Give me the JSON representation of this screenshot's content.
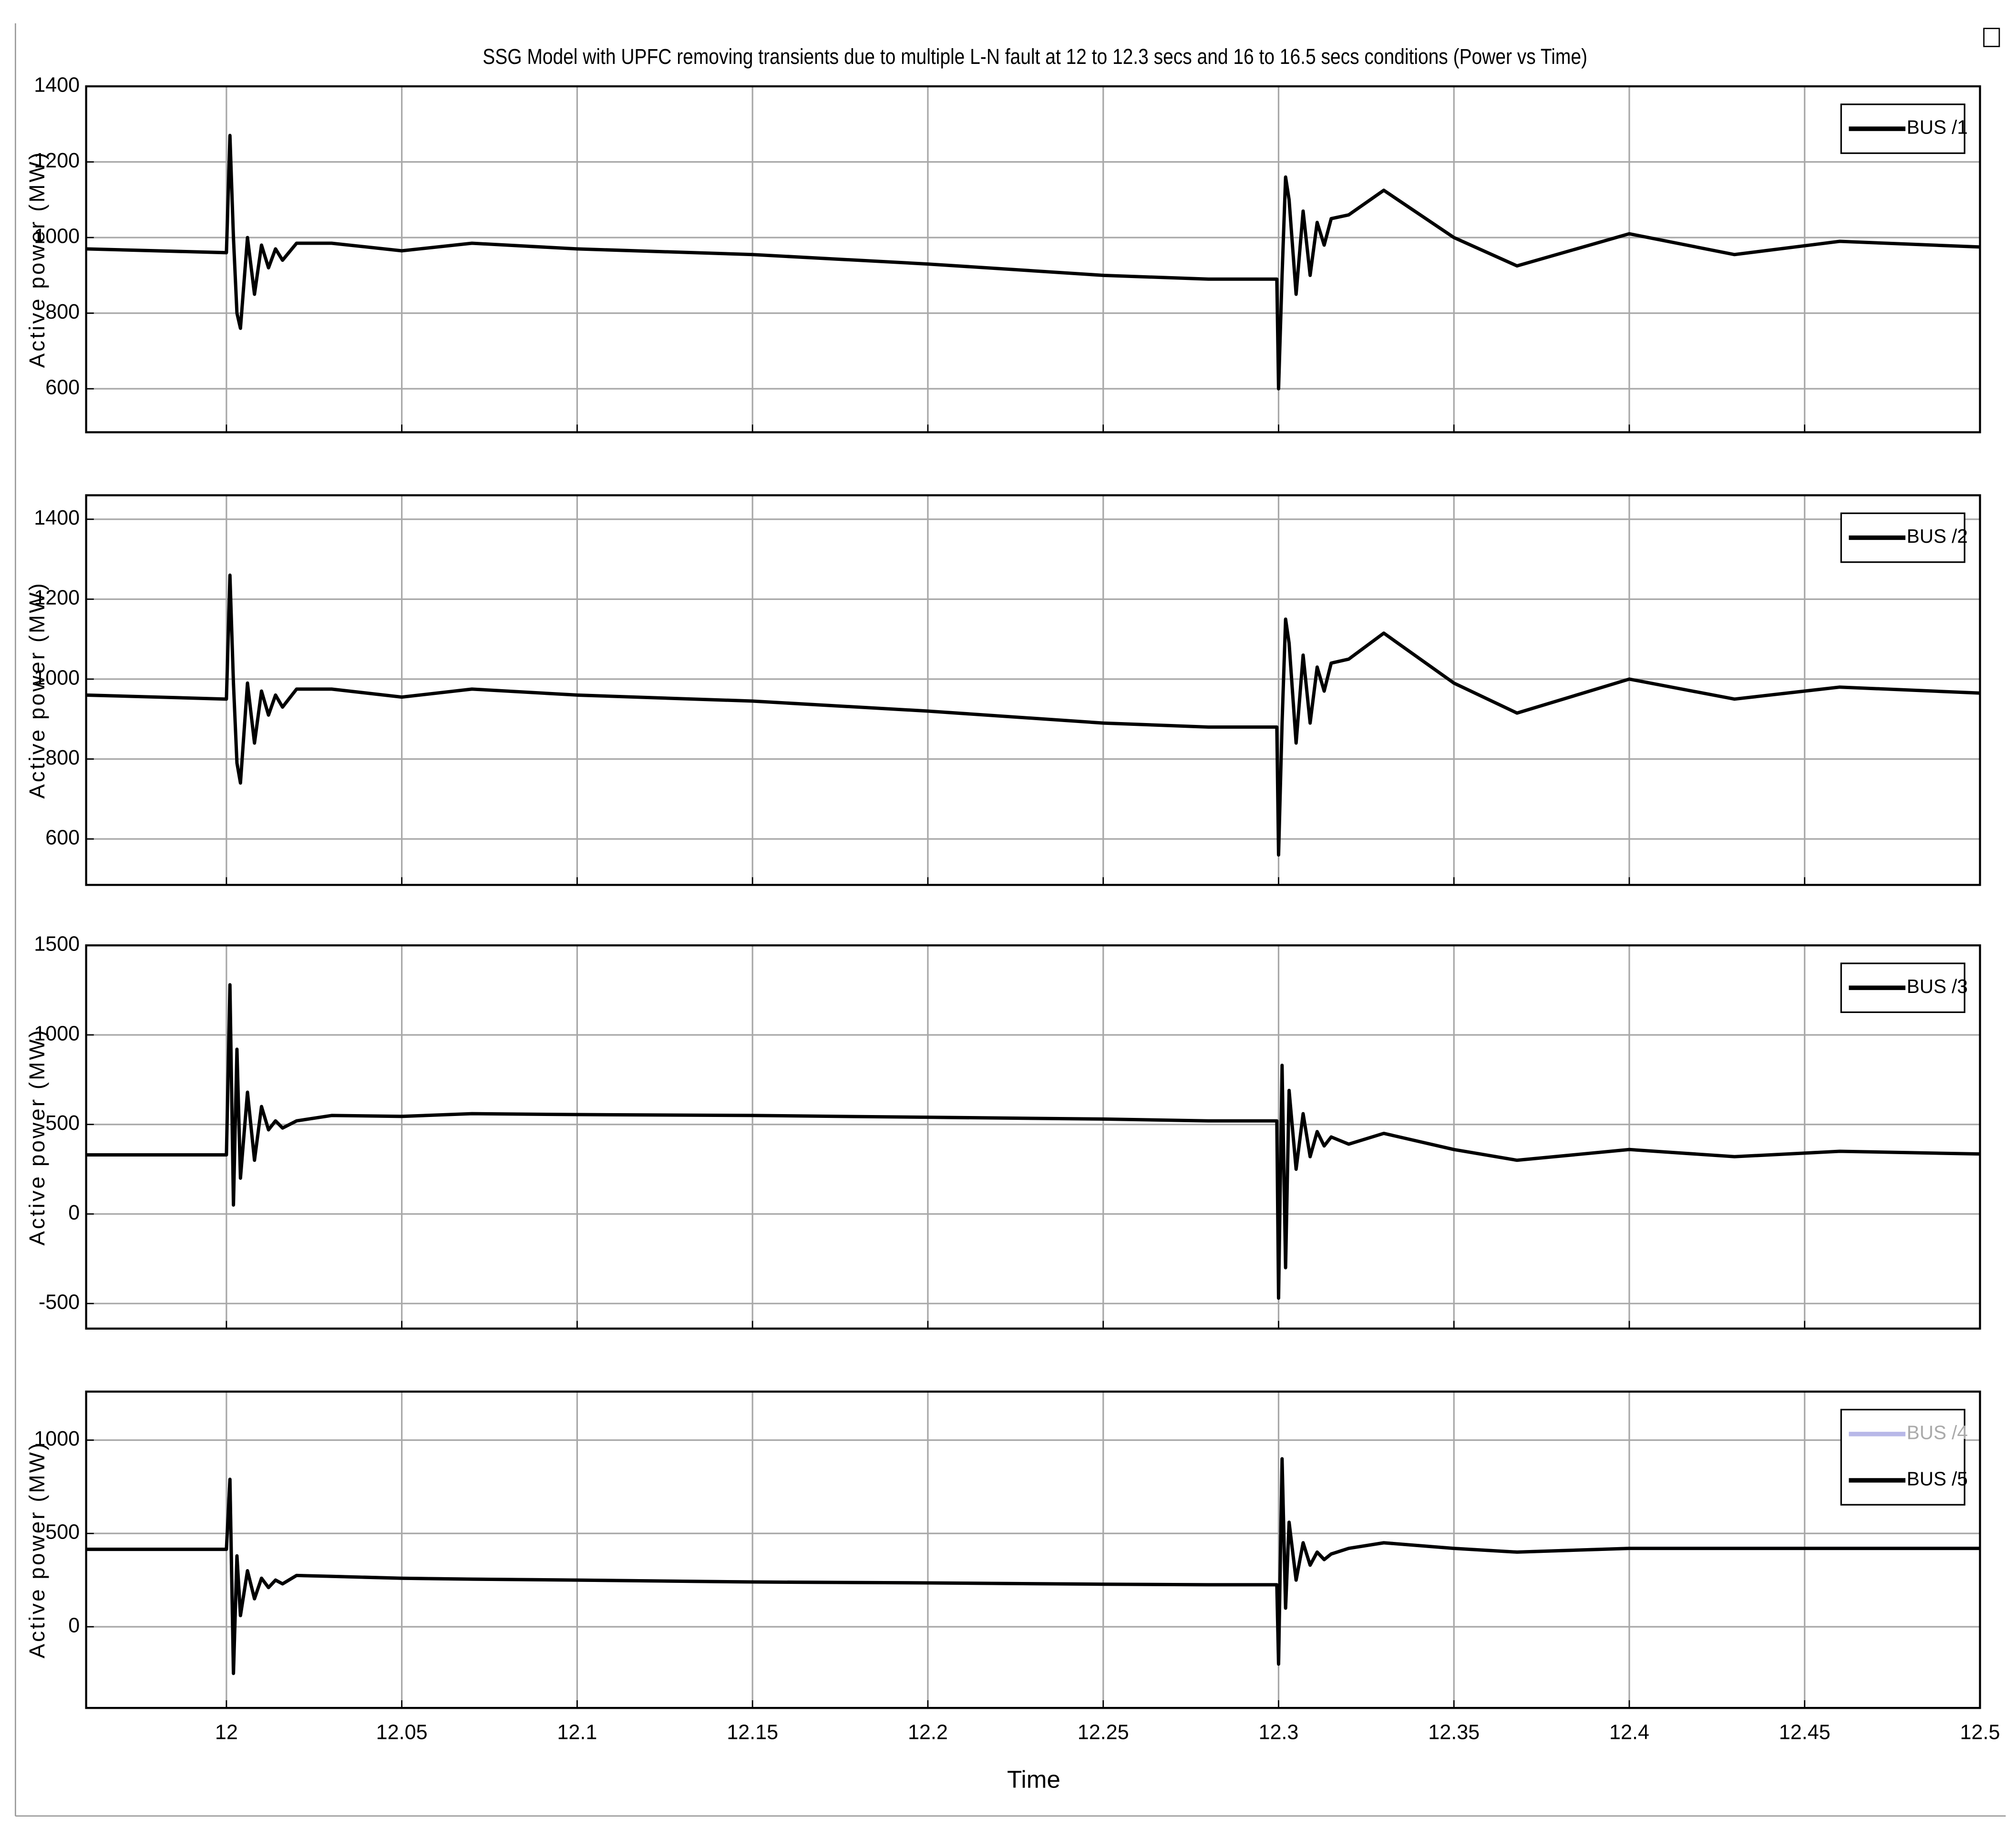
{
  "chart_data": [
    {
      "type": "line",
      "title": "SSG Model with UPFC removing transients due to multiple L-N fault at 12 to 12.3 secs and 16 to 16.5 secs conditions (Power vs Time)",
      "ylabel": "Active power (MW)",
      "grid": true,
      "legend": "upper right",
      "xlim": [
        11.96,
        12.5
      ],
      "xticks": [
        12,
        12.05,
        12.1,
        12.15,
        12.2,
        12.25,
        12.3,
        12.35,
        12.4,
        12.45,
        12.5
      ],
      "ylim": [
        485,
        1400
      ],
      "yticks": [
        600,
        800,
        1000,
        1200,
        1400
      ],
      "x": [
        11.96,
        12.0,
        12.001,
        12.002,
        12.003,
        12.004,
        12.006,
        12.008,
        12.01,
        12.012,
        12.014,
        12.016,
        12.02,
        12.03,
        12.05,
        12.07,
        12.1,
        12.15,
        12.2,
        12.25,
        12.28,
        12.2995,
        12.3,
        12.301,
        12.302,
        12.303,
        12.305,
        12.307,
        12.309,
        12.311,
        12.313,
        12.315,
        12.32,
        12.33,
        12.35,
        12.368,
        12.4,
        12.43,
        12.46,
        12.5
      ],
      "series": [
        {
          "name": "BUS /1",
          "color": "#000000",
          "values": [
            970,
            960,
            1270,
            1000,
            800,
            760,
            1000,
            850,
            980,
            920,
            970,
            940,
            985,
            985,
            965,
            985,
            970,
            955,
            930,
            900,
            890,
            890,
            600,
            900,
            1160,
            1100,
            850,
            1070,
            900,
            1040,
            980,
            1050,
            1060,
            1125,
            1000,
            925,
            1010,
            955,
            990,
            975
          ]
        }
      ]
    },
    {
      "type": "line",
      "ylabel": "Active power (MW)",
      "grid": true,
      "legend": "upper right",
      "xlim": [
        11.96,
        12.5
      ],
      "xticks": [
        12,
        12.05,
        12.1,
        12.15,
        12.2,
        12.25,
        12.3,
        12.35,
        12.4,
        12.45,
        12.5
      ],
      "ylim": [
        485,
        1460
      ],
      "yticks": [
        600,
        800,
        1000,
        1200,
        1400
      ],
      "x": [
        11.96,
        12.0,
        12.001,
        12.002,
        12.003,
        12.004,
        12.006,
        12.008,
        12.01,
        12.012,
        12.014,
        12.016,
        12.02,
        12.03,
        12.05,
        12.07,
        12.1,
        12.15,
        12.2,
        12.25,
        12.28,
        12.2995,
        12.3,
        12.301,
        12.302,
        12.303,
        12.305,
        12.307,
        12.309,
        12.311,
        12.313,
        12.315,
        12.32,
        12.33,
        12.35,
        12.368,
        12.4,
        12.43,
        12.46,
        12.5
      ],
      "series": [
        {
          "name": "BUS /2",
          "color": "#000000",
          "values": [
            960,
            950,
            1260,
            990,
            790,
            740,
            990,
            840,
            970,
            910,
            960,
            930,
            975,
            975,
            955,
            975,
            960,
            945,
            920,
            890,
            880,
            880,
            560,
            890,
            1150,
            1090,
            840,
            1060,
            890,
            1030,
            970,
            1040,
            1050,
            1115,
            990,
            915,
            1000,
            950,
            980,
            965
          ]
        }
      ]
    },
    {
      "type": "line",
      "ylabel": "Active power (MW)",
      "grid": true,
      "legend": "upper right",
      "xlim": [
        11.96,
        12.5
      ],
      "xticks": [
        12,
        12.05,
        12.1,
        12.15,
        12.2,
        12.25,
        12.3,
        12.35,
        12.4,
        12.45,
        12.5
      ],
      "ylim": [
        -640,
        1500
      ],
      "yticks": [
        -500,
        0,
        500,
        1000,
        1500
      ],
      "x": [
        11.96,
        12.0,
        12.001,
        12.002,
        12.003,
        12.004,
        12.006,
        12.008,
        12.01,
        12.012,
        12.014,
        12.016,
        12.02,
        12.03,
        12.05,
        12.07,
        12.1,
        12.15,
        12.2,
        12.25,
        12.28,
        12.2995,
        12.3,
        12.301,
        12.302,
        12.303,
        12.305,
        12.307,
        12.309,
        12.311,
        12.313,
        12.315,
        12.32,
        12.33,
        12.35,
        12.368,
        12.4,
        12.43,
        12.46,
        12.5
      ],
      "series": [
        {
          "name": "BUS /3",
          "color": "#000000",
          "values": [
            330,
            330,
            1280,
            50,
            920,
            200,
            680,
            300,
            600,
            470,
            520,
            480,
            520,
            550,
            545,
            560,
            555,
            550,
            540,
            530,
            520,
            520,
            -470,
            830,
            -300,
            690,
            250,
            560,
            320,
            460,
            380,
            430,
            390,
            450,
            360,
            300,
            360,
            320,
            350,
            335
          ]
        }
      ]
    },
    {
      "type": "line",
      "ylabel": "Active power (MW)",
      "xlabel": "Time",
      "grid": true,
      "legend": "upper right",
      "xlim": [
        11.96,
        12.5
      ],
      "xticks": [
        12,
        12.05,
        12.1,
        12.15,
        12.2,
        12.25,
        12.3,
        12.35,
        12.4,
        12.45,
        12.5
      ],
      "ylim": [
        -435,
        1260
      ],
      "yticks": [
        0,
        500,
        1000
      ],
      "x": [
        11.96,
        12.0,
        12.001,
        12.002,
        12.003,
        12.004,
        12.006,
        12.008,
        12.01,
        12.012,
        12.014,
        12.016,
        12.02,
        12.03,
        12.05,
        12.07,
        12.1,
        12.15,
        12.2,
        12.25,
        12.28,
        12.2995,
        12.3,
        12.301,
        12.302,
        12.303,
        12.305,
        12.307,
        12.309,
        12.311,
        12.313,
        12.315,
        12.32,
        12.33,
        12.35,
        12.368,
        12.4,
        12.43,
        12.46,
        12.5
      ],
      "series": [
        {
          "name": "BUS /4",
          "color": "#b8b8e8",
          "values": [
            415,
            415,
            790,
            -250,
            380,
            60,
            300,
            150,
            260,
            210,
            250,
            230,
            275,
            270,
            260,
            255,
            250,
            240,
            235,
            228,
            225,
            225,
            -200,
            900,
            100,
            560,
            250,
            450,
            330,
            400,
            360,
            390,
            420,
            450,
            420,
            400,
            420,
            420,
            420,
            420
          ]
        },
        {
          "name": "BUS /5",
          "color": "#000000",
          "values": [
            415,
            415,
            790,
            -250,
            380,
            60,
            300,
            150,
            260,
            210,
            250,
            230,
            275,
            270,
            260,
            255,
            250,
            240,
            235,
            228,
            225,
            225,
            -200,
            900,
            100,
            560,
            250,
            450,
            330,
            400,
            360,
            390,
            420,
            450,
            420,
            400,
            420,
            420,
            420,
            420
          ]
        }
      ]
    }
  ]
}
